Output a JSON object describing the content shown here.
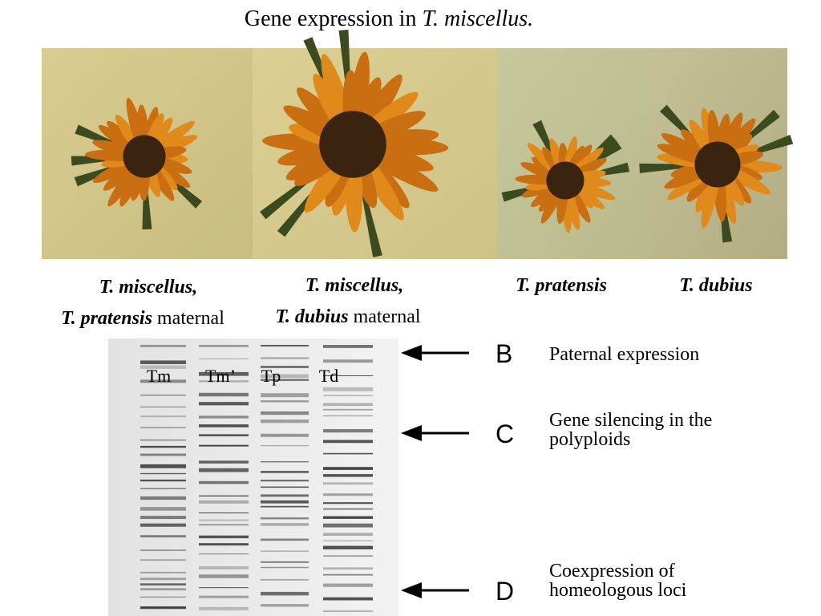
{
  "title": {
    "text": "Gene expression in ",
    "species": "T. miscellus."
  },
  "photos": [
    {
      "line1": "T. miscellus,",
      "species": "T. pratensis",
      "suffix": " maternal"
    },
    {
      "line1": "T. miscellus,",
      "species": "T. dubius",
      "suffix": " maternal"
    },
    {
      "line1": "T. pratensis"
    },
    {
      "line1": "T. dubius"
    }
  ],
  "lanes": [
    "Tm",
    "Tm’",
    "Tp",
    "Td"
  ],
  "markers": [
    {
      "letter": "B",
      "lines": [
        "Paternal expression"
      ]
    },
    {
      "letter": "C",
      "lines": [
        "Gene silencing in the",
        "polyploids"
      ]
    },
    {
      "letter": "D",
      "lines": [
        "Coexpression of",
        "homeologous loci"
      ]
    }
  ]
}
